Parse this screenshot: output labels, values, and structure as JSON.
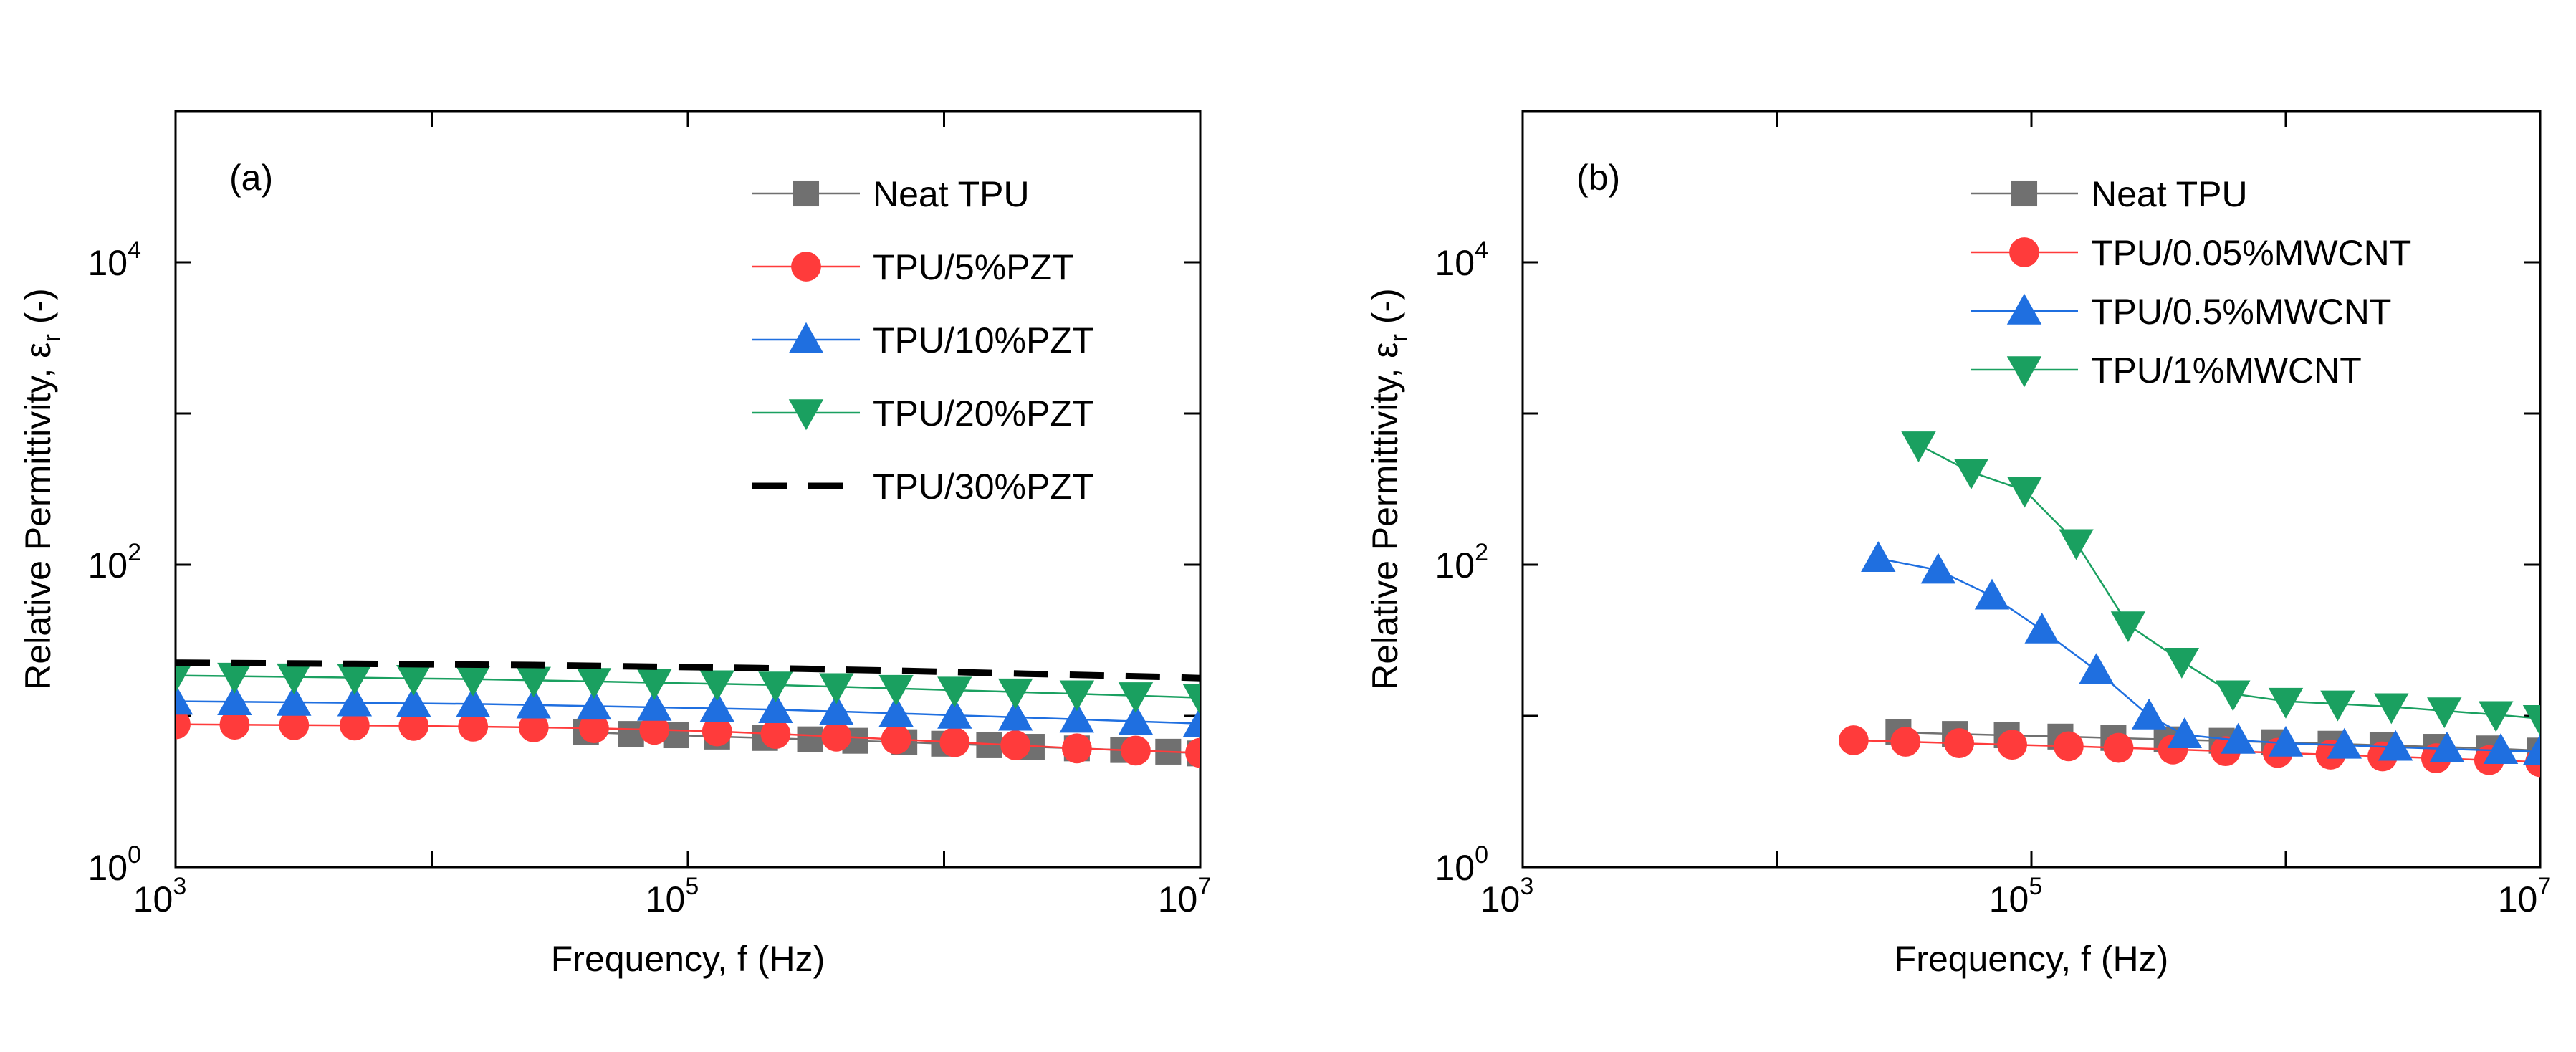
{
  "chart_data": [
    {
      "type": "line",
      "panel_label": "(a)",
      "xscale": "log",
      "yscale": "log",
      "xlim": [
        1000,
        10000000
      ],
      "ylim": [
        1,
        100000
      ],
      "xlabel": "Frequency, f (Hz)",
      "ylabel": {
        "main": "Relative Permittivity, ε",
        "sub": "r",
        "suffix": " (-)"
      },
      "xticks": [
        {
          "base": "10",
          "exp": "3",
          "value": 1000
        },
        {
          "base": "10",
          "exp": "5",
          "value": 100000
        },
        {
          "base": "10",
          "exp": "7",
          "value": 10000000
        }
      ],
      "yticks": [
        {
          "base": "10",
          "exp": "0",
          "value": 1
        },
        {
          "base": "10",
          "exp": "2",
          "value": 100
        },
        {
          "base": "10",
          "exp": "4",
          "value": 10000
        }
      ],
      "legend_position": "top-right",
      "series": [
        {
          "name": "Neat TPU",
          "color": "#707070",
          "marker": "square",
          "x": [
            40000,
            60000,
            90000,
            130000,
            200000,
            300000,
            450000,
            700000,
            1000000,
            1500000,
            2200000,
            3300000,
            5000000,
            7500000,
            10000000
          ],
          "y": [
            7.8,
            7.6,
            7.45,
            7.3,
            7.15,
            7.0,
            6.85,
            6.7,
            6.55,
            6.4,
            6.25,
            6.1,
            5.95,
            5.8,
            5.65
          ]
        },
        {
          "name": "TPU/5%PZT",
          "color": "#ff3b3b",
          "marker": "circle",
          "x": [
            1000,
            1700,
            2900,
            5000,
            8500,
            14500,
            25000,
            43000,
            74000,
            130000,
            220000,
            380000,
            650000,
            1100000,
            1900000,
            3300000,
            5600000,
            10000000
          ],
          "y": [
            8.8,
            8.75,
            8.7,
            8.65,
            8.6,
            8.5,
            8.4,
            8.3,
            8.1,
            7.9,
            7.6,
            7.3,
            7.0,
            6.7,
            6.4,
            6.1,
            5.9,
            5.7
          ]
        },
        {
          "name": "TPU/10%PZT",
          "color": "#1f6fe0",
          "marker": "triangle-up",
          "x": [
            1000,
            1700,
            2900,
            5000,
            8500,
            14500,
            25000,
            43000,
            74000,
            130000,
            220000,
            380000,
            650000,
            1100000,
            1900000,
            3300000,
            5600000,
            10000000
          ],
          "y": [
            12.5,
            12.4,
            12.3,
            12.2,
            12.1,
            12.0,
            11.8,
            11.6,
            11.4,
            11.2,
            11.0,
            10.7,
            10.4,
            10.1,
            9.8,
            9.5,
            9.2,
            8.9
          ]
        },
        {
          "name": "TPU/20%PZT",
          "color": "#1aa060",
          "marker": "triangle-down",
          "x": [
            1000,
            1700,
            2900,
            5000,
            8500,
            14500,
            25000,
            43000,
            74000,
            130000,
            220000,
            380000,
            650000,
            1100000,
            1900000,
            3300000,
            5600000,
            10000000
          ],
          "y": [
            18.5,
            18.3,
            18.1,
            17.9,
            17.7,
            17.5,
            17.2,
            16.9,
            16.6,
            16.3,
            16.0,
            15.6,
            15.2,
            14.8,
            14.4,
            14.0,
            13.6,
            13.2
          ]
        },
        {
          "name": "TPU/30%PZT",
          "color": "#000000",
          "marker": "none",
          "dashed": true,
          "x": [
            1000,
            1500,
            2200,
            3300,
            5000,
            7500,
            11000,
            17000,
            25000,
            38000,
            56000,
            85000,
            130000,
            190000,
            280000,
            420000,
            640000,
            950000,
            1400000,
            2100000,
            3200000,
            4800000,
            7200000,
            10000000
          ],
          "y": [
            22.5,
            22.4,
            22.3,
            22.2,
            22.1,
            22.0,
            21.9,
            21.8,
            21.7,
            21.5,
            21.3,
            21.1,
            20.9,
            20.7,
            20.5,
            20.2,
            19.9,
            19.6,
            19.3,
            19.0,
            18.7,
            18.4,
            18.1,
            17.8
          ]
        }
      ]
    },
    {
      "type": "line",
      "panel_label": "(b)",
      "xscale": "log",
      "yscale": "log",
      "xlim": [
        1000,
        10000000
      ],
      "ylim": [
        1,
        100000
      ],
      "xlabel": "Frequency, f (Hz)",
      "ylabel": {
        "main": "Relative Permittivity, ε",
        "sub": "r",
        "suffix": " (-)"
      },
      "xticks": [
        {
          "base": "10",
          "exp": "3",
          "value": 1000
        },
        {
          "base": "10",
          "exp": "5",
          "value": 100000
        },
        {
          "base": "10",
          "exp": "7",
          "value": 10000000
        }
      ],
      "yticks": [
        {
          "base": "10",
          "exp": "0",
          "value": 1
        },
        {
          "base": "10",
          "exp": "2",
          "value": 100
        },
        {
          "base": "10",
          "exp": "4",
          "value": 10000
        }
      ],
      "legend_position": "top-center",
      "series": [
        {
          "name": "Neat TPU",
          "color": "#707070",
          "marker": "square",
          "x": [
            30000,
            50000,
            80000,
            130000,
            210000,
            340000,
            560000,
            900000,
            1500000,
            2400000,
            3900000,
            6300000,
            10000000
          ],
          "y": [
            7.8,
            7.6,
            7.45,
            7.3,
            7.15,
            7.0,
            6.85,
            6.7,
            6.55,
            6.4,
            6.25,
            6.1,
            5.9
          ]
        },
        {
          "name": "TPU/0.05%MWCNT",
          "color": "#ff3b3b",
          "marker": "circle",
          "x": [
            20000,
            32000,
            52000,
            84000,
            140000,
            220000,
            360000,
            580000,
            930000,
            1500000,
            2400000,
            3900000,
            6300000,
            10000000
          ],
          "y": [
            6.9,
            6.75,
            6.6,
            6.45,
            6.3,
            6.15,
            6.0,
            5.85,
            5.7,
            5.55,
            5.4,
            5.25,
            5.1,
            4.95
          ]
        },
        {
          "name": "TPU/0.5%MWCNT",
          "color": "#1f6fe0",
          "marker": "triangle-up",
          "x": [
            25000,
            43000,
            70000,
            110000,
            180000,
            290000,
            400000,
            650000,
            1000000,
            1700000,
            2700000,
            4300000,
            7000000,
            10000000
          ],
          "y": [
            110,
            92,
            62,
            37,
            20,
            10,
            7.5,
            6.9,
            6.6,
            6.4,
            6.2,
            6.05,
            5.9,
            5.8
          ]
        },
        {
          "name": "TPU/1%MWCNT",
          "color": "#1aa060",
          "marker": "triangle-down",
          "x": [
            36000,
            58000,
            94000,
            150000,
            240000,
            390000,
            620000,
            1000000,
            1600000,
            2600000,
            4200000,
            6700000,
            10000000
          ],
          "y": [
            620,
            410,
            310,
            140,
            40,
            23,
            14,
            12.5,
            12,
            11.5,
            10.8,
            10.2,
            9.6
          ]
        }
      ]
    }
  ]
}
